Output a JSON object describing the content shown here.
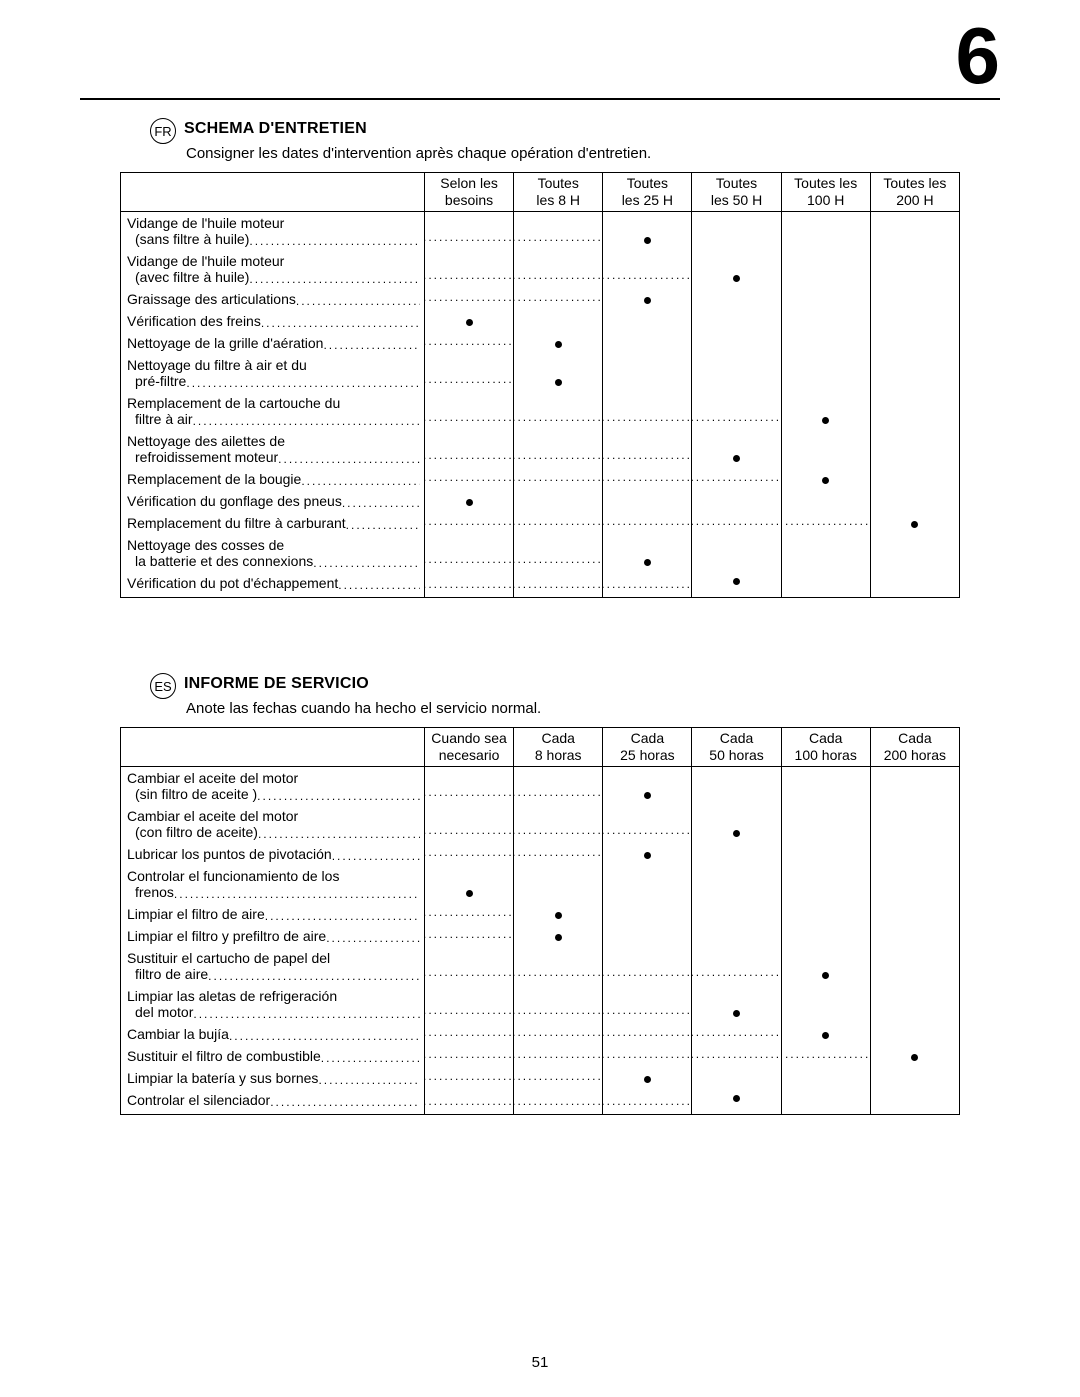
{
  "page_number": "51",
  "chapter_number": "6",
  "dots_fill": "..............................................................................................................................................",
  "fr": {
    "lang": "FR",
    "title": "SCHEMA D'ENTRETIEN",
    "subtitle": "Consigner les dates d'intervention après chaque opération d'entretien.",
    "headers": [
      {
        "l1": "Selon les",
        "l2": "besoins"
      },
      {
        "l1": "Toutes",
        "l2": "les 8 H"
      },
      {
        "l1": "Toutes",
        "l2": "les 25 H"
      },
      {
        "l1": "Toutes",
        "l2": "les 50 H"
      },
      {
        "l1": "Toutes les",
        "l2": "100 H"
      },
      {
        "l1": "Toutes les",
        "l2": "200 H"
      }
    ],
    "rows": [
      {
        "l1": "Vidange de l'huile moteur",
        "l2": "(sans filtre à huile)",
        "mark": 2
      },
      {
        "l1": "Vidange de l'huile moteur",
        "l2": "(avec filtre à huile)",
        "mark": 3
      },
      {
        "l1": "",
        "l2": "Graissage des articulations",
        "mark": 2,
        "single": true
      },
      {
        "l1": "",
        "l2": "Vérification des freins",
        "mark": 0,
        "single": true
      },
      {
        "l1": "",
        "l2": "Nettoyage de la grille d'aération",
        "mark": 1,
        "single": true
      },
      {
        "l1": "Nettoyage du filtre à air et du",
        "l2": "pré-filtre",
        "mark": 1
      },
      {
        "l1": "Remplacement de la cartouche du",
        "l2": "filtre à air",
        "mark": 4
      },
      {
        "l1": "Nettoyage des ailettes de",
        "l2": "refroidissement moteur",
        "mark": 3
      },
      {
        "l1": "",
        "l2": "Remplacement de la bougie",
        "mark": 4,
        "single": true
      },
      {
        "l1": "",
        "l2": "Vérification du gonflage des pneus",
        "mark": 0,
        "single": true
      },
      {
        "l1": "",
        "l2": "Remplacement du filtre à carburant",
        "mark": 5,
        "single": true
      },
      {
        "l1": "Nettoyage des cosses de",
        "l2": "la batterie et des connexions",
        "mark": 2
      },
      {
        "l1": "",
        "l2": "Vérification du pot d'échappement",
        "mark": 3,
        "single": true
      }
    ]
  },
  "es": {
    "lang": "ES",
    "title": "INFORME DE SERVICIO",
    "subtitle": "Anote las fechas cuando ha hecho el servicio normal.",
    "headers": [
      {
        "l1": "Cuando sea",
        "l2": "necesario"
      },
      {
        "l1": "Cada",
        "l2": "8 horas"
      },
      {
        "l1": "Cada",
        "l2": "25 horas"
      },
      {
        "l1": "Cada",
        "l2": "50 horas"
      },
      {
        "l1": "Cada",
        "l2": "100 horas"
      },
      {
        "l1": "Cada",
        "l2": "200 horas"
      }
    ],
    "rows": [
      {
        "l1": "Cambiar el aceite del motor",
        "l2": "(sin filtro de aceite )",
        "mark": 2
      },
      {
        "l1": "Cambiar el aceite del motor",
        "l2": "(con filtro de aceite)",
        "mark": 3
      },
      {
        "l1": "",
        "l2": "Lubricar los puntos de pivotación",
        "mark": 2,
        "single": true
      },
      {
        "l1": "Controlar el funcionamiento de los",
        "l2": "frenos",
        "mark": 0
      },
      {
        "l1": "",
        "l2": "Limpiar el filtro de aire",
        "mark": 1,
        "single": true
      },
      {
        "l1": "",
        "l2": "Limpiar el filtro y prefiltro de aire",
        "mark": 1,
        "single": true
      },
      {
        "l1": "Sustituir el cartucho de papel del",
        "l2": "filtro de aire",
        "mark": 4
      },
      {
        "l1": "Limpiar las aletas de refrigeración",
        "l2": "del motor",
        "mark": 3
      },
      {
        "l1": "",
        "l2": "Cambiar la bujía",
        "mark": 4,
        "single": true
      },
      {
        "l1": "",
        "l2": "Sustituir el filtro de combustible",
        "mark": 5,
        "single": true
      },
      {
        "l1": "",
        "l2": "Limpiar la batería y sus bornes",
        "mark": 2,
        "single": true
      },
      {
        "l1": "",
        "l2": "Controlar el silenciador",
        "mark": 3,
        "single": true
      }
    ]
  }
}
